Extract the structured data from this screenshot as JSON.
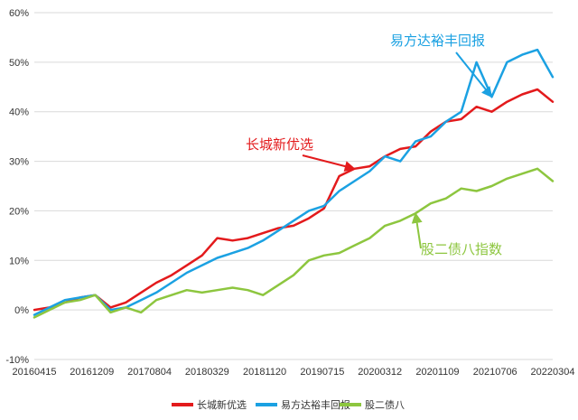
{
  "chart_data": {
    "type": "line",
    "x_ticks": [
      "20160415",
      "20161209",
      "20170804",
      "20180329",
      "20181120",
      "20190715",
      "20200312",
      "20201109",
      "20210706",
      "20220304"
    ],
    "y_ticks": [
      "-10%",
      "0%",
      "10%",
      "20%",
      "30%",
      "40%",
      "50%",
      "60%"
    ],
    "ylim": [
      -10,
      60
    ],
    "y_unit": "%",
    "grid": "horizontal",
    "legend_position": "bottom",
    "series": [
      {
        "name": "长城新优选",
        "color": "#e31a1c",
        "values": [
          0.0,
          0.5,
          1.5,
          2.5,
          3.0,
          0.5,
          1.5,
          3.5,
          5.5,
          7.0,
          9.0,
          11.0,
          14.5,
          14.0,
          14.5,
          15.5,
          16.5,
          17.0,
          18.5,
          20.5,
          27.0,
          28.5,
          29.0,
          31.0,
          32.5,
          33.0,
          36.0,
          38.0,
          38.5,
          41.0,
          40.0,
          42.0,
          43.5,
          44.5,
          42.0
        ]
      },
      {
        "name": "易方达裕丰回报",
        "color": "#1ba1e2",
        "values": [
          -1.0,
          0.5,
          2.0,
          2.5,
          3.0,
          0.0,
          0.5,
          2.0,
          3.5,
          5.5,
          7.5,
          9.0,
          10.5,
          11.5,
          12.5,
          14.0,
          16.0,
          18.0,
          20.0,
          21.0,
          24.0,
          26.0,
          28.0,
          31.0,
          30.0,
          34.0,
          35.0,
          38.0,
          40.0,
          50.0,
          43.0,
          50.0,
          51.5,
          52.5,
          47.0
        ]
      },
      {
        "name": "股二债八",
        "color": "#8dc63f",
        "values": [
          -1.5,
          0.0,
          1.5,
          2.0,
          3.0,
          -0.5,
          0.5,
          -0.5,
          2.0,
          3.0,
          4.0,
          3.5,
          4.0,
          4.5,
          4.0,
          3.0,
          5.0,
          7.0,
          10.0,
          11.0,
          11.5,
          13.0,
          14.5,
          17.0,
          18.0,
          19.5,
          21.5,
          22.5,
          24.5,
          24.0,
          25.0,
          26.5,
          27.5,
          28.5,
          26.0
        ]
      }
    ],
    "annotations": [
      {
        "text": "易方达裕丰回报",
        "series": 1,
        "point_index": 30
      },
      {
        "text": "长城新优选",
        "series": 0,
        "point_index": 21
      },
      {
        "text": "股二债八指数",
        "series": 2,
        "point_index": 25
      }
    ]
  }
}
